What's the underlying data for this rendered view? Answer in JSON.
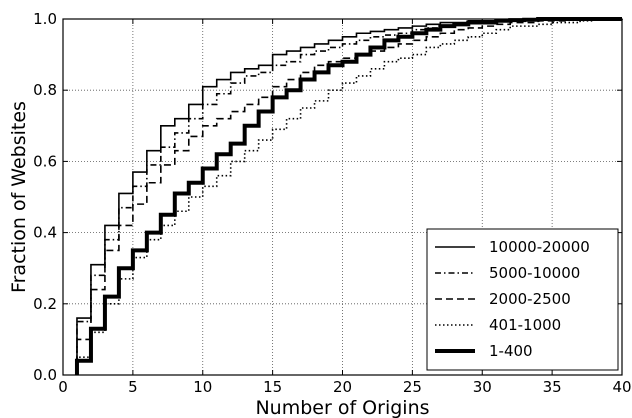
{
  "chart_data": {
    "type": "line",
    "xlabel": "Number of Origins",
    "ylabel": "Fraction of Websites",
    "xlim": [
      0,
      40
    ],
    "ylim": [
      0,
      1.0
    ],
    "xticks": [
      0,
      5,
      10,
      15,
      20,
      25,
      30,
      35,
      40
    ],
    "yticks": [
      0.0,
      0.2,
      0.4,
      0.6,
      0.8,
      1.0
    ],
    "xtick_labels": [
      "0",
      "5",
      "10",
      "15",
      "20",
      "25",
      "30",
      "35",
      "40"
    ],
    "ytick_labels": [
      "0.0",
      "0.2",
      "0.4",
      "0.6",
      "0.8",
      "1.0"
    ],
    "grid": true,
    "legend_position": "bottom-right",
    "x": [
      1,
      2,
      3,
      4,
      5,
      6,
      7,
      8,
      9,
      10,
      11,
      12,
      13,
      14,
      15,
      16,
      17,
      18,
      19,
      20,
      21,
      22,
      23,
      24,
      25,
      26,
      27,
      28,
      29,
      30,
      31,
      32,
      33,
      34,
      35,
      36,
      37,
      38,
      39,
      40
    ],
    "series": [
      {
        "name": "10000-20000",
        "style": "solid",
        "width": "thin",
        "values": [
          0.16,
          0.31,
          0.42,
          0.51,
          0.57,
          0.63,
          0.7,
          0.72,
          0.76,
          0.81,
          0.83,
          0.85,
          0.86,
          0.87,
          0.9,
          0.91,
          0.92,
          0.93,
          0.94,
          0.95,
          0.96,
          0.965,
          0.97,
          0.975,
          0.98,
          0.985,
          0.99,
          0.99,
          0.995,
          0.995,
          0.997,
          0.998,
          0.999,
          1.0,
          1.0,
          1.0,
          1.0,
          1.0,
          1.0,
          1.0
        ]
      },
      {
        "name": "5000-10000",
        "style": "dashdot",
        "width": "thin",
        "values": [
          0.15,
          0.28,
          0.38,
          0.47,
          0.53,
          0.59,
          0.64,
          0.68,
          0.72,
          0.76,
          0.79,
          0.82,
          0.84,
          0.85,
          0.87,
          0.88,
          0.9,
          0.91,
          0.92,
          0.93,
          0.94,
          0.95,
          0.955,
          0.96,
          0.97,
          0.975,
          0.98,
          0.985,
          0.99,
          0.99,
          0.993,
          0.995,
          0.997,
          0.998,
          0.999,
          1.0,
          1.0,
          1.0,
          1.0,
          1.0
        ]
      },
      {
        "name": "2000-2500",
        "style": "dashed",
        "width": "thin",
        "values": [
          0.1,
          0.24,
          0.35,
          0.42,
          0.48,
          0.54,
          0.59,
          0.63,
          0.67,
          0.7,
          0.72,
          0.74,
          0.76,
          0.78,
          0.81,
          0.83,
          0.85,
          0.87,
          0.88,
          0.89,
          0.9,
          0.91,
          0.92,
          0.93,
          0.94,
          0.95,
          0.96,
          0.97,
          0.975,
          0.98,
          0.985,
          0.99,
          0.99,
          0.995,
          0.995,
          0.997,
          0.998,
          0.999,
          1.0,
          1.0
        ]
      },
      {
        "name": "401-1000",
        "style": "dotted",
        "width": "thin",
        "values": [
          0.05,
          0.12,
          0.2,
          0.27,
          0.33,
          0.38,
          0.42,
          0.46,
          0.5,
          0.53,
          0.56,
          0.6,
          0.63,
          0.66,
          0.69,
          0.72,
          0.75,
          0.77,
          0.8,
          0.82,
          0.84,
          0.86,
          0.88,
          0.89,
          0.9,
          0.92,
          0.93,
          0.94,
          0.95,
          0.96,
          0.97,
          0.98,
          0.98,
          0.985,
          0.99,
          0.99,
          0.995,
          0.997,
          0.999,
          1.0
        ]
      },
      {
        "name": "1-400",
        "style": "solid",
        "width": "thick",
        "values": [
          0.04,
          0.13,
          0.22,
          0.3,
          0.35,
          0.4,
          0.45,
          0.51,
          0.54,
          0.58,
          0.62,
          0.65,
          0.7,
          0.74,
          0.78,
          0.8,
          0.83,
          0.85,
          0.87,
          0.88,
          0.9,
          0.92,
          0.94,
          0.95,
          0.96,
          0.97,
          0.98,
          0.985,
          0.99,
          0.99,
          0.995,
          0.997,
          0.998,
          1.0,
          1.0,
          1.0,
          1.0,
          1.0,
          1.0,
          1.0
        ]
      }
    ]
  }
}
